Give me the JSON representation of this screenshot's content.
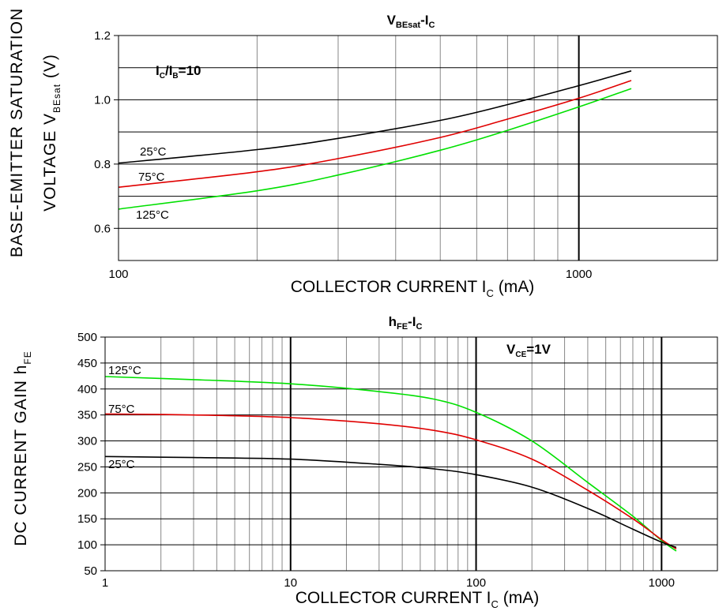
{
  "chart_data": [
    {
      "type": "line",
      "title": "V_BEsat-I_C",
      "title_parts": {
        "main": "V",
        "sub1": "BEsat",
        "dash": "-I",
        "sub2": "C"
      },
      "xlabel": "COLLECTOR CURRENT I_C (mA)",
      "xlabel_parts": {
        "pre": "COLLECTOR CURRENT I",
        "sub": "C",
        "post": " (mA)"
      },
      "ylabel": "BASE-EMITTER SATURATION VOLTAGE V_BEsat (V)",
      "ylabel_parts": {
        "line1": "BASE-EMITTER SATURATION",
        "line2_pre": "VOLTAGE V",
        "line2_sub": "BEsat",
        "line2_post": " (V)"
      },
      "x_scale": "log",
      "xlim": [
        100,
        2000
      ],
      "ylim": [
        0.5,
        1.2
      ],
      "xticks": [
        {
          "value": 100,
          "label": "100"
        },
        {
          "value": 1000,
          "label": "1000"
        }
      ],
      "yticks": [
        {
          "value": 0.6,
          "label": "0.6"
        },
        {
          "value": 0.8,
          "label": "0.8"
        },
        {
          "value": 1.0,
          "label": "1.0"
        },
        {
          "value": 1.2,
          "label": "1.2"
        }
      ],
      "grid": true,
      "annotation": "I_C/I_B=10",
      "annotation_parts": {
        "a": "I",
        "sub1": "C",
        "b": "/I",
        "sub2": "B",
        "c": "=10"
      },
      "series": [
        {
          "name": "25°C",
          "color": "#000000",
          "x": [
            100,
            200,
            300,
            500,
            700,
            1000,
            1300
          ],
          "y": [
            0.803,
            0.845,
            0.88,
            0.936,
            0.985,
            1.044,
            1.09
          ]
        },
        {
          "name": "75°C",
          "color": "#e00000",
          "x": [
            100,
            200,
            300,
            500,
            700,
            1000,
            1300
          ],
          "y": [
            0.728,
            0.776,
            0.817,
            0.883,
            0.94,
            1.005,
            1.06
          ]
        },
        {
          "name": "125°C",
          "color": "#00e000",
          "x": [
            100,
            200,
            300,
            500,
            700,
            1000,
            1300
          ],
          "y": [
            0.66,
            0.717,
            0.766,
            0.843,
            0.905,
            0.978,
            1.035
          ]
        }
      ]
    },
    {
      "type": "line",
      "title": "h_FE-I_C",
      "title_parts": {
        "main": "h",
        "sub1": "FE",
        "dash": "-I",
        "sub2": "C"
      },
      "xlabel": "COLLECTOR CURRENT I_C (mA)",
      "xlabel_parts": {
        "pre": "COLLECTOR CURRENT I",
        "sub": "C",
        "post": " (mA)"
      },
      "ylabel": "DC CURRENT GAIN h_FE",
      "ylabel_parts": {
        "pre": "DC CURRENT GAIN h",
        "sub": "FE"
      },
      "x_scale": "log",
      "xlim": [
        1,
        2000
      ],
      "ylim": [
        50,
        500
      ],
      "xticks": [
        {
          "value": 1,
          "label": "1"
        },
        {
          "value": 10,
          "label": "10"
        },
        {
          "value": 100,
          "label": "100"
        },
        {
          "value": 1000,
          "label": "1000"
        }
      ],
      "yticks": [
        {
          "value": 50,
          "label": "50"
        },
        {
          "value": 100,
          "label": "100"
        },
        {
          "value": 150,
          "label": "150"
        },
        {
          "value": 200,
          "label": "200"
        },
        {
          "value": 250,
          "label": "250"
        },
        {
          "value": 300,
          "label": "300"
        },
        {
          "value": 350,
          "label": "350"
        },
        {
          "value": 400,
          "label": "400"
        },
        {
          "value": 450,
          "label": "450"
        },
        {
          "value": 500,
          "label": "500"
        }
      ],
      "grid": true,
      "annotation": "V_CE=1V",
      "annotation_parts": {
        "a": "V",
        "sub1": "CE",
        "b": "=1V"
      },
      "series": [
        {
          "name": "125°C",
          "color": "#00e000",
          "x": [
            1,
            3,
            10,
            30,
            60,
            100,
            200,
            400,
            700,
            1000,
            1200
          ],
          "y": [
            424,
            418,
            410,
            395,
            380,
            355,
            300,
            220,
            155,
            108,
            88
          ]
        },
        {
          "name": "75°C",
          "color": "#e00000",
          "x": [
            1,
            3,
            10,
            30,
            60,
            100,
            200,
            400,
            700,
            1000,
            1200
          ],
          "y": [
            352,
            350,
            345,
            333,
            320,
            302,
            265,
            205,
            150,
            110,
            92
          ]
        },
        {
          "name": "25°C",
          "color": "#000000",
          "x": [
            1,
            3,
            10,
            30,
            60,
            100,
            200,
            400,
            700,
            1000,
            1200
          ],
          "y": [
            270,
            268,
            265,
            255,
            246,
            235,
            211,
            170,
            130,
            105,
            95
          ]
        }
      ]
    }
  ]
}
